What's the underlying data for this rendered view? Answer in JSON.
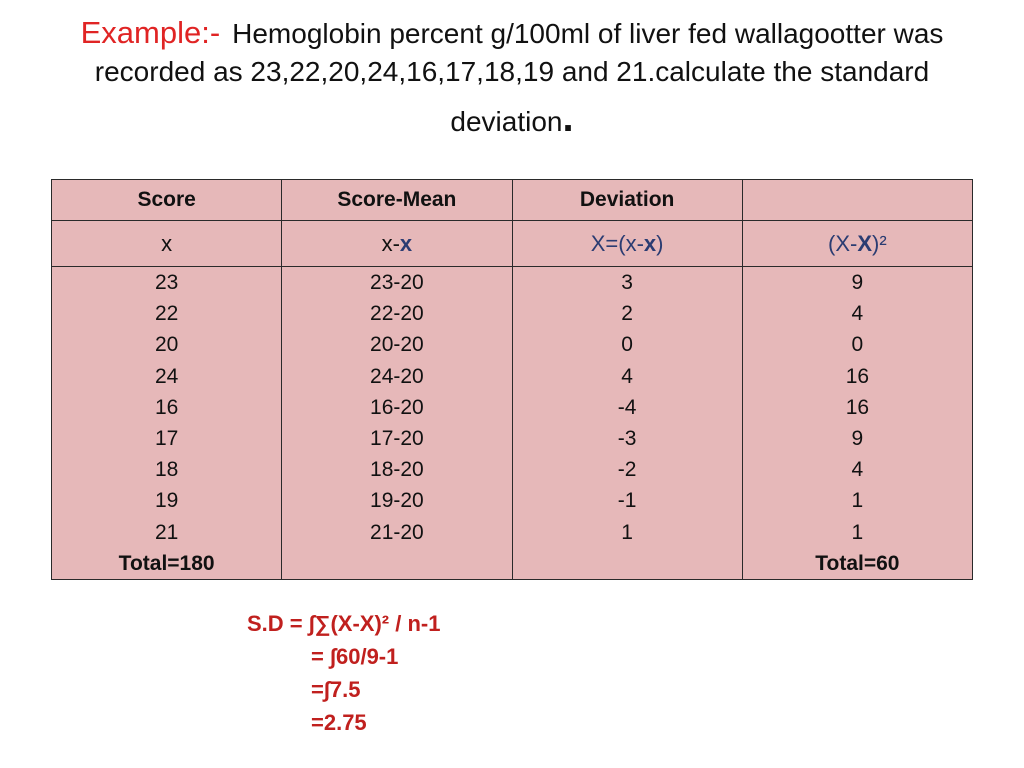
{
  "heading": {
    "label": "Example:-",
    "line1": "Hemoglobin percent g/100ml of liver fed wallagootter was",
    "line2": "recorded as 23,22,20,24,16,17,18,19 and 21.calculate the standard",
    "line3": "deviation",
    "period": "."
  },
  "table": {
    "headers": [
      "Score",
      "Score-Mean",
      "Deviation",
      ""
    ],
    "symbols": {
      "col1": "x",
      "col2_pre": "x-",
      "col2_bold": "x",
      "col3_pre": "X=(x-",
      "col3_bold": "x",
      "col3_post": ")",
      "col4_pre": "(X-",
      "col4_bold": "X",
      "col4_post": ")²"
    },
    "scores": [
      "23",
      "22",
      "20",
      "24",
      "16",
      "17",
      "18",
      "19",
      "21"
    ],
    "score_total": "Total=180",
    "score_minus_mean": [
      "23-20",
      "22-20",
      "20-20",
      "24-20",
      "16-20",
      "17-20",
      "18-20",
      "19-20",
      "21-20"
    ],
    "deviations": [
      "3",
      "2",
      "0",
      "4",
      "-4",
      "-3",
      "-2",
      "-1",
      "1"
    ],
    "squared": [
      "9",
      "4",
      "0",
      "16",
      "16",
      "9",
      "4",
      "1",
      "1"
    ],
    "squared_total": "Total=60"
  },
  "formula": {
    "line1": "S.D = ∫∑(X-X)² / n-1",
    "line2": "= ∫60/9-1",
    "line3": "=∫7.5",
    "line4": "=2.75"
  }
}
